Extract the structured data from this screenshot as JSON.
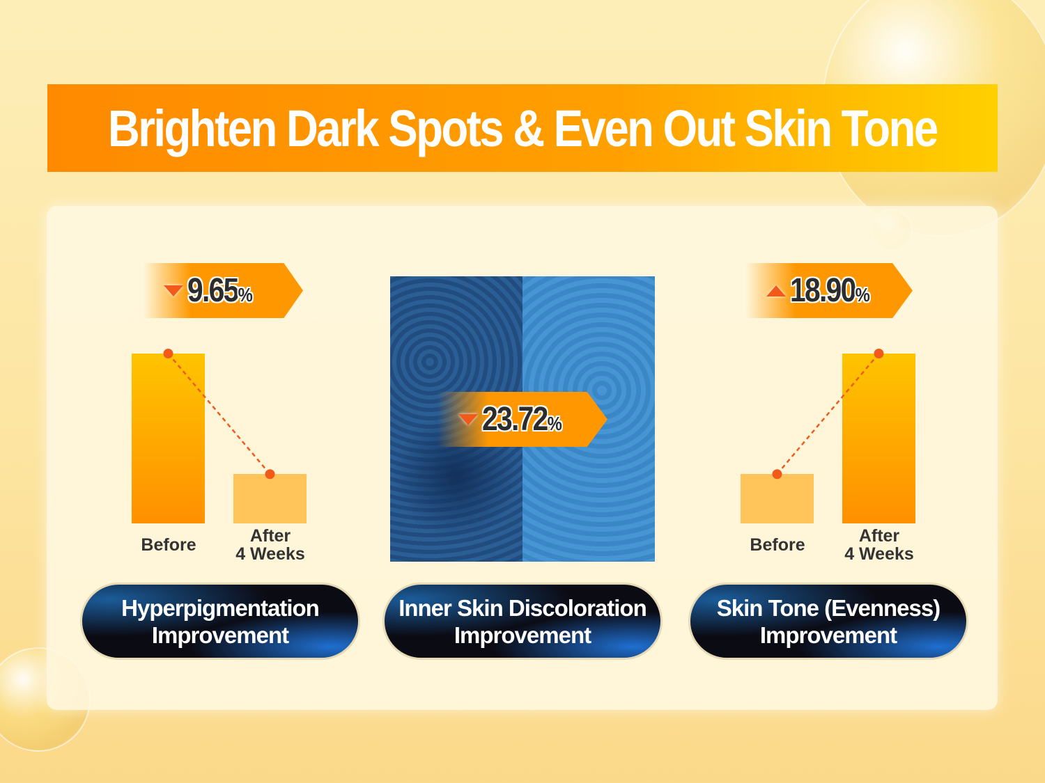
{
  "title": "Brighten Dark Spots & Even Out Skin Tone",
  "chart_data": [
    {
      "type": "bar",
      "categories": [
        "Before",
        "After\n4 Weeks"
      ],
      "category_lines": [
        [
          "Before"
        ],
        [
          "After",
          "4 Weeks"
        ]
      ],
      "relative_levels": [
        100,
        29
      ],
      "change": {
        "direction": "down",
        "value": "9.65",
        "unit": "%"
      },
      "label": [
        "Hyperpigmentation",
        "Improvement"
      ]
    },
    {
      "type": "image",
      "change": {
        "direction": "down",
        "value": "23.72",
        "unit": "%"
      },
      "label": [
        "Inner Skin Discoloration",
        "Improvement"
      ]
    },
    {
      "type": "bar",
      "categories": [
        "Before",
        "After\n4 Weeks"
      ],
      "category_lines": [
        [
          "Before"
        ],
        [
          "After",
          "4 Weeks"
        ]
      ],
      "relative_levels": [
        29,
        100
      ],
      "change": {
        "direction": "up",
        "value": "18.90",
        "unit": "%"
      },
      "label": [
        "Skin Tone (Evenness)",
        "Improvement"
      ]
    }
  ],
  "colors": {
    "accent": "#ff9800",
    "arrow": "#f25a1c",
    "bar_before": "#ffc55a",
    "bar_peak": "#ff9000"
  }
}
